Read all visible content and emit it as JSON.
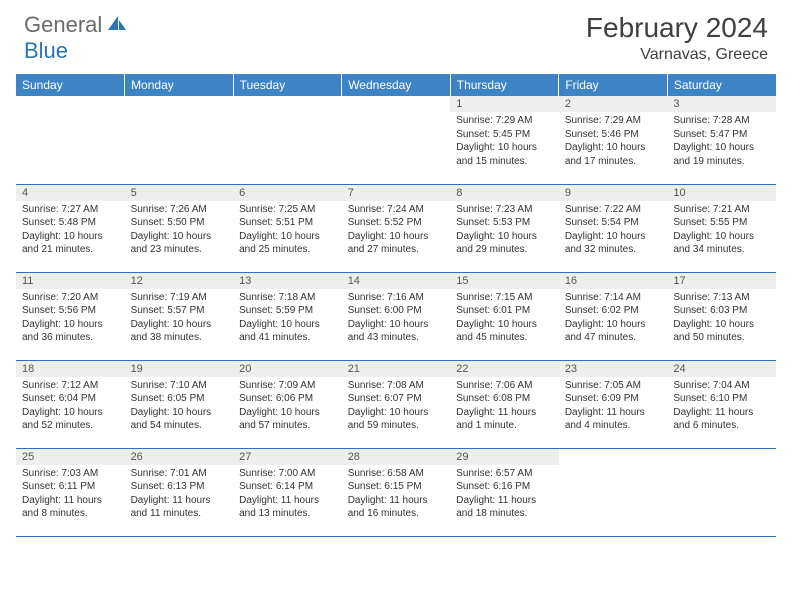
{
  "logo": {
    "general": "General",
    "blue": "Blue"
  },
  "title": "February 2024",
  "location": "Varnavas, Greece",
  "colors": {
    "header_bg": "#3c84c6",
    "header_text": "#ffffff",
    "band_bg": "#eeeeee",
    "border": "#2e74b5",
    "title_color": "#404040",
    "logo_gray": "#6b6b6b",
    "logo_blue": "#2e74b5"
  },
  "weekdays": [
    "Sunday",
    "Monday",
    "Tuesday",
    "Wednesday",
    "Thursday",
    "Friday",
    "Saturday"
  ],
  "layout": {
    "first_weekday_index": 4,
    "days_in_month": 29,
    "rows": 5,
    "cols": 7
  },
  "days": [
    {
      "n": 1,
      "sunrise": "7:29 AM",
      "sunset": "5:45 PM",
      "daylight": "10 hours and 15 minutes."
    },
    {
      "n": 2,
      "sunrise": "7:29 AM",
      "sunset": "5:46 PM",
      "daylight": "10 hours and 17 minutes."
    },
    {
      "n": 3,
      "sunrise": "7:28 AM",
      "sunset": "5:47 PM",
      "daylight": "10 hours and 19 minutes."
    },
    {
      "n": 4,
      "sunrise": "7:27 AM",
      "sunset": "5:48 PM",
      "daylight": "10 hours and 21 minutes."
    },
    {
      "n": 5,
      "sunrise": "7:26 AM",
      "sunset": "5:50 PM",
      "daylight": "10 hours and 23 minutes."
    },
    {
      "n": 6,
      "sunrise": "7:25 AM",
      "sunset": "5:51 PM",
      "daylight": "10 hours and 25 minutes."
    },
    {
      "n": 7,
      "sunrise": "7:24 AM",
      "sunset": "5:52 PM",
      "daylight": "10 hours and 27 minutes."
    },
    {
      "n": 8,
      "sunrise": "7:23 AM",
      "sunset": "5:53 PM",
      "daylight": "10 hours and 29 minutes."
    },
    {
      "n": 9,
      "sunrise": "7:22 AM",
      "sunset": "5:54 PM",
      "daylight": "10 hours and 32 minutes."
    },
    {
      "n": 10,
      "sunrise": "7:21 AM",
      "sunset": "5:55 PM",
      "daylight": "10 hours and 34 minutes."
    },
    {
      "n": 11,
      "sunrise": "7:20 AM",
      "sunset": "5:56 PM",
      "daylight": "10 hours and 36 minutes."
    },
    {
      "n": 12,
      "sunrise": "7:19 AM",
      "sunset": "5:57 PM",
      "daylight": "10 hours and 38 minutes."
    },
    {
      "n": 13,
      "sunrise": "7:18 AM",
      "sunset": "5:59 PM",
      "daylight": "10 hours and 41 minutes."
    },
    {
      "n": 14,
      "sunrise": "7:16 AM",
      "sunset": "6:00 PM",
      "daylight": "10 hours and 43 minutes."
    },
    {
      "n": 15,
      "sunrise": "7:15 AM",
      "sunset": "6:01 PM",
      "daylight": "10 hours and 45 minutes."
    },
    {
      "n": 16,
      "sunrise": "7:14 AM",
      "sunset": "6:02 PM",
      "daylight": "10 hours and 47 minutes."
    },
    {
      "n": 17,
      "sunrise": "7:13 AM",
      "sunset": "6:03 PM",
      "daylight": "10 hours and 50 minutes."
    },
    {
      "n": 18,
      "sunrise": "7:12 AM",
      "sunset": "6:04 PM",
      "daylight": "10 hours and 52 minutes."
    },
    {
      "n": 19,
      "sunrise": "7:10 AM",
      "sunset": "6:05 PM",
      "daylight": "10 hours and 54 minutes."
    },
    {
      "n": 20,
      "sunrise": "7:09 AM",
      "sunset": "6:06 PM",
      "daylight": "10 hours and 57 minutes."
    },
    {
      "n": 21,
      "sunrise": "7:08 AM",
      "sunset": "6:07 PM",
      "daylight": "10 hours and 59 minutes."
    },
    {
      "n": 22,
      "sunrise": "7:06 AM",
      "sunset": "6:08 PM",
      "daylight": "11 hours and 1 minute."
    },
    {
      "n": 23,
      "sunrise": "7:05 AM",
      "sunset": "6:09 PM",
      "daylight": "11 hours and 4 minutes."
    },
    {
      "n": 24,
      "sunrise": "7:04 AM",
      "sunset": "6:10 PM",
      "daylight": "11 hours and 6 minutes."
    },
    {
      "n": 25,
      "sunrise": "7:03 AM",
      "sunset": "6:11 PM",
      "daylight": "11 hours and 8 minutes."
    },
    {
      "n": 26,
      "sunrise": "7:01 AM",
      "sunset": "6:13 PM",
      "daylight": "11 hours and 11 minutes."
    },
    {
      "n": 27,
      "sunrise": "7:00 AM",
      "sunset": "6:14 PM",
      "daylight": "11 hours and 13 minutes."
    },
    {
      "n": 28,
      "sunrise": "6:58 AM",
      "sunset": "6:15 PM",
      "daylight": "11 hours and 16 minutes."
    },
    {
      "n": 29,
      "sunrise": "6:57 AM",
      "sunset": "6:16 PM",
      "daylight": "11 hours and 18 minutes."
    }
  ],
  "labels": {
    "sunrise": "Sunrise:",
    "sunset": "Sunset:",
    "daylight": "Daylight:"
  }
}
